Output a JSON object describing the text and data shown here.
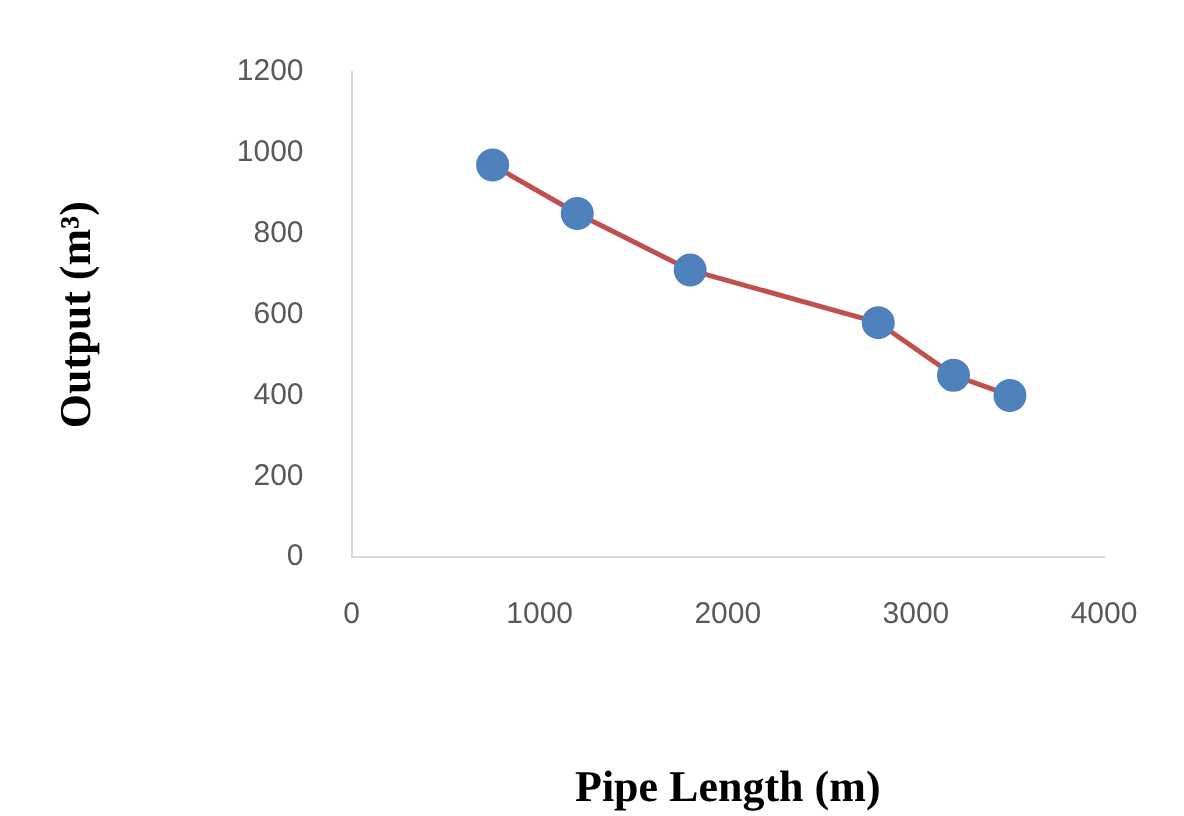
{
  "chart_data": {
    "type": "line",
    "xlabel": "Pipe Length (m)",
    "ylabel": "Output (m³)",
    "x": [
      750,
      1200,
      1800,
      2800,
      3200,
      3500
    ],
    "series": [
      {
        "color": "#c0504d",
        "colors": [
          "#4f81bd",
          "#4f81bd",
          "#4f81bd",
          "#4f81bd",
          "#4f81bd",
          "#4f81bd"
        ],
        "values": [
          970,
          850,
          710,
          580,
          450,
          400
        ]
      }
    ],
    "marker": "circle",
    "xlim": [
      0,
      4000
    ],
    "xticks": [
      0,
      1000,
      2000,
      3000,
      4000
    ],
    "ylim": [
      0,
      1200
    ],
    "yticks": [
      0,
      200,
      400,
      600,
      800,
      1000,
      1200
    ],
    "grid": false,
    "legend": false
  }
}
